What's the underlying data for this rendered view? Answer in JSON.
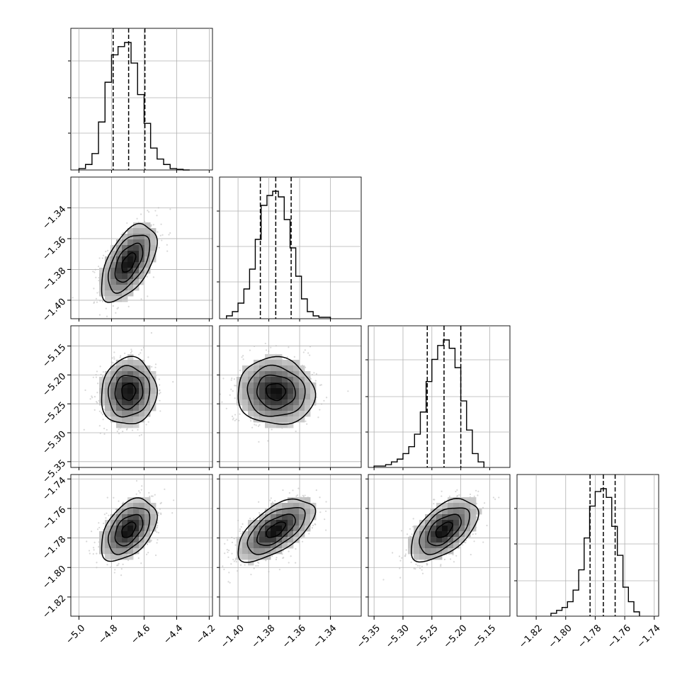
{
  "chart_data": {
    "type": "corner",
    "n_params": 4,
    "params": [
      {
        "index": 0,
        "range": [
          -5.05,
          -4.18
        ],
        "ticks": [
          -5.0,
          -4.8,
          -4.6,
          -4.4,
          -4.2
        ],
        "tick_labels": [
          "−5.0",
          "−4.8",
          "−4.6",
          "−4.4",
          "−4.2"
        ],
        "quantiles": [
          -4.79,
          -4.695,
          -4.595
        ],
        "hist_edges": [
          -5.0,
          -4.96,
          -4.92,
          -4.88,
          -4.84,
          -4.8,
          -4.76,
          -4.72,
          -4.68,
          -4.64,
          -4.6,
          -4.56,
          -4.52,
          -4.48,
          -4.44,
          -4.4,
          -4.36,
          -4.32
        ],
        "hist_counts": [
          0.01,
          0.04,
          0.12,
          0.35,
          0.64,
          0.84,
          0.9,
          0.93,
          0.78,
          0.55,
          0.34,
          0.16,
          0.08,
          0.04,
          0.01,
          0.005,
          0.0
        ],
        "hist_ytick_fracs": [
          0.26,
          0.51,
          0.77
        ]
      },
      {
        "index": 1,
        "range": [
          -1.412,
          -1.32
        ],
        "ticks": [
          -1.4,
          -1.38,
          -1.36,
          -1.34
        ],
        "tick_labels": [
          "−1.40",
          "−1.38",
          "−1.36",
          "−1.34"
        ],
        "quantiles": [
          -1.3855,
          -1.3755,
          -1.3655
        ],
        "hist_edges": [
          -1.4075,
          -1.4037,
          -1.4,
          -1.3962,
          -1.3925,
          -1.3888,
          -1.385,
          -1.3812,
          -1.3775,
          -1.3738,
          -1.37,
          -1.3662,
          -1.3625,
          -1.3588,
          -1.355,
          -1.3512,
          -1.3475,
          -1.3438,
          -1.34
        ],
        "hist_counts": [
          0.02,
          0.05,
          0.11,
          0.21,
          0.35,
          0.56,
          0.8,
          0.87,
          0.9,
          0.86,
          0.7,
          0.5,
          0.3,
          0.14,
          0.05,
          0.02,
          0.01,
          0.01
        ],
        "hist_ytick_fracs": [
          0.26,
          0.51,
          0.76
        ]
      },
      {
        "index": 2,
        "range": [
          -5.36,
          -5.115
        ],
        "ticks": [
          -5.35,
          -5.3,
          -5.25,
          -5.2,
          -5.15
        ],
        "tick_labels": [
          "−5.35",
          "−5.30",
          "−5.25",
          "−5.20",
          "−5.15"
        ],
        "quantiles": [
          -5.258,
          -5.229,
          -5.2
        ],
        "hist_edges": [
          -5.35,
          -5.34,
          -5.33,
          -5.32,
          -5.31,
          -5.3,
          -5.29,
          -5.28,
          -5.27,
          -5.26,
          -5.25,
          -5.24,
          -5.23,
          -5.22,
          -5.21,
          -5.2,
          -5.19,
          -5.18,
          -5.17,
          -5.16
        ],
        "hist_counts": [
          0.01,
          0.01,
          0.02,
          0.04,
          0.06,
          0.1,
          0.15,
          0.24,
          0.4,
          0.62,
          0.78,
          0.88,
          0.92,
          0.86,
          0.72,
          0.48,
          0.27,
          0.1,
          0.04
        ],
        "hist_ytick_fracs": [
          0.25,
          0.5,
          0.76
        ]
      },
      {
        "index": 3,
        "range": [
          -1.833,
          -1.737
        ],
        "ticks": [
          -1.82,
          -1.8,
          -1.78,
          -1.76,
          -1.74
        ],
        "tick_labels": [
          "−1.82",
          "−1.80",
          "−1.78",
          "−1.76",
          "−1.74"
        ],
        "quantiles": [
          -1.7835,
          -1.7745,
          -1.7665
        ],
        "hist_edges": [
          -1.81,
          -1.8062,
          -1.8025,
          -1.7988,
          -1.795,
          -1.7912,
          -1.7875,
          -1.7838,
          -1.78,
          -1.7762,
          -1.7725,
          -1.7688,
          -1.765,
          -1.7612,
          -1.7575,
          -1.7538,
          -1.75
        ],
        "hist_counts": [
          0.02,
          0.04,
          0.06,
          0.1,
          0.18,
          0.32,
          0.54,
          0.76,
          0.86,
          0.88,
          0.82,
          0.62,
          0.42,
          0.2,
          0.1,
          0.03
        ],
        "hist_ytick_fracs": [
          0.25,
          0.51,
          0.76
        ]
      }
    ],
    "pairs": [
      {
        "x": 0,
        "y": 1,
        "center": [
          -4.695,
          -1.3755
        ],
        "sigma": [
          0.085,
          0.0125
        ],
        "rho": 0.55,
        "n_scatter": 700
      },
      {
        "x": 0,
        "y": 2,
        "center": [
          -4.695,
          -5.229
        ],
        "sigma": [
          0.085,
          0.029
        ],
        "rho": 0.05,
        "n_scatter": 700
      },
      {
        "x": 1,
        "y": 2,
        "center": [
          -1.3755,
          -5.229
        ],
        "sigma": [
          0.0125,
          0.029
        ],
        "rho": -0.05,
        "n_scatter": 700
      },
      {
        "x": 0,
        "y": 3,
        "center": [
          -4.695,
          -1.7745
        ],
        "sigma": [
          0.085,
          0.0105
        ],
        "rho": 0.45,
        "n_scatter": 700
      },
      {
        "x": 1,
        "y": 3,
        "center": [
          -1.3755,
          -1.7745
        ],
        "sigma": [
          0.0125,
          0.0105
        ],
        "rho": 0.62,
        "n_scatter": 700
      },
      {
        "x": 2,
        "y": 3,
        "center": [
          -5.229,
          -1.7745
        ],
        "sigma": [
          0.029,
          0.0105
        ],
        "rho": 0.55,
        "n_scatter": 700
      }
    ],
    "contour_levels_sigma": [
      0.5,
      1.0,
      1.5,
      2.0
    ],
    "grid": true,
    "legend": "none",
    "colors": {
      "line": "#000000",
      "grid": "#b0b0b0",
      "scatter": "#b8b8b8",
      "density_dark": "#1a1a1a",
      "density_light": "#f0f0f0"
    }
  }
}
